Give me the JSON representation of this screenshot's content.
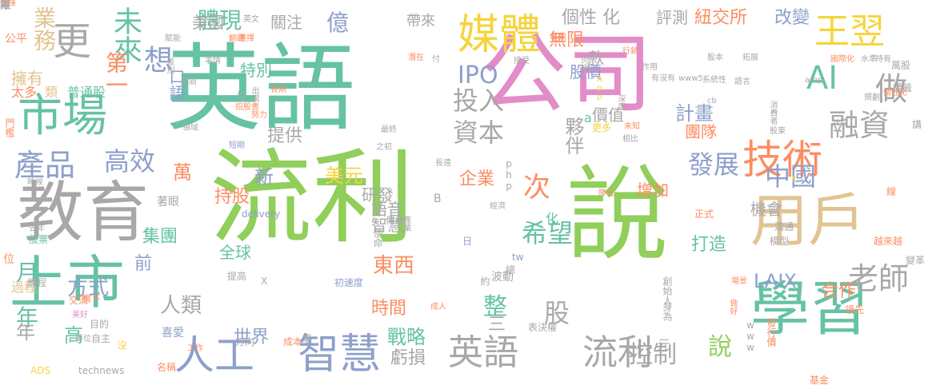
{
  "palette": {
    "green": "#8fcf5a",
    "teal": "#66c2a5",
    "pink": "#e28cc8",
    "gray": "#a8a8a8",
    "blue": "#8da0cb",
    "orange": "#fc8d62",
    "yellow": "#f5d43c",
    "tan": "#e2c492"
  },
  "words": [
    {
      "text": "流利",
      "size": 128,
      "color": "#8fcf5a"
    },
    {
      "text": "英語",
      "size": 118,
      "color": "#66c2a5"
    },
    {
      "text": "公司",
      "size": 108,
      "color": "#e28cc8"
    },
    {
      "text": "說",
      "size": 128,
      "color": "#8fcf5a"
    },
    {
      "text": "教育",
      "size": 82,
      "color": "#a8a8a8"
    },
    {
      "text": "上市",
      "size": 72,
      "color": "#66c2a5"
    },
    {
      "text": "學習",
      "size": 74,
      "color": "#66c2a5"
    },
    {
      "text": "用戶",
      "size": 72,
      "color": "#e2c492"
    },
    {
      "text": "市場",
      "size": 56,
      "color": "#66c2a5"
    },
    {
      "text": "技術",
      "size": 50,
      "color": "#fc8d62"
    },
    {
      "text": "媒體",
      "size": 52,
      "color": "#f5d43c"
    },
    {
      "text": "智慧",
      "size": 52,
      "color": "#8da0cb"
    },
    {
      "text": "人工",
      "size": 50,
      "color": "#8da0cb"
    },
    {
      "text": "英語",
      "size": 44,
      "color": "#a8a8a8"
    },
    {
      "text": "流利",
      "size": 44,
      "color": "#a8a8a8"
    },
    {
      "text": "王翌",
      "size": 44,
      "color": "#f5d43c"
    },
    {
      "text": "更",
      "size": 48,
      "color": "#a8a8a8"
    },
    {
      "text": "AI",
      "size": 40,
      "color": "#66c2a5"
    },
    {
      "text": "做",
      "size": 40,
      "color": "#a8a8a8"
    },
    {
      "text": "融資",
      "size": 38,
      "color": "#a8a8a8"
    },
    {
      "text": "產品",
      "size": 38,
      "color": "#8da0cb"
    },
    {
      "text": "未來",
      "size": 36,
      "color": "#66c2a5"
    },
    {
      "text": "想",
      "size": 36,
      "color": "#8da0cb"
    },
    {
      "text": "業務",
      "size": 28,
      "color": "#e2c492"
    },
    {
      "text": "體現",
      "size": 28,
      "color": "#66c2a5"
    },
    {
      "text": "億",
      "size": 28,
      "color": "#8da0cb"
    },
    {
      "text": "IPO",
      "size": 30,
      "color": "#8da0cb"
    },
    {
      "text": "投入",
      "size": 32,
      "color": "#a8a8a8"
    },
    {
      "text": "資本",
      "size": 32,
      "color": "#a8a8a8"
    },
    {
      "text": "高效",
      "size": 32,
      "color": "#8da0cb"
    },
    {
      "text": "第一",
      "size": 28,
      "color": "#fc8d62"
    },
    {
      "text": "發展",
      "size": 32,
      "color": "#8da0cb"
    },
    {
      "text": "中國",
      "size": 32,
      "color": "#8da0cb"
    },
    {
      "text": "次",
      "size": 34,
      "color": "#fc8d62"
    },
    {
      "text": "希望",
      "size": 32,
      "color": "#66c2a5"
    },
    {
      "text": "老師",
      "size": 38,
      "color": "#a8a8a8"
    },
    {
      "text": "控制",
      "size": 30,
      "color": "#a8a8a8"
    },
    {
      "text": "說",
      "size": 30,
      "color": "#8fcf5a"
    },
    {
      "text": "整",
      "size": 30,
      "color": "#66c2a5"
    },
    {
      "text": "股",
      "size": 32,
      "color": "#a8a8a8"
    },
    {
      "text": "年",
      "size": 28,
      "color": "#66c2a5"
    },
    {
      "text": "月",
      "size": 28,
      "color": "#66c2a5"
    },
    {
      "text": "東西",
      "size": 26,
      "color": "#fc8d62"
    },
    {
      "text": "方式",
      "size": 26,
      "color": "#8da0cb"
    },
    {
      "text": "人類",
      "size": 26,
      "color": "#a8a8a8"
    },
    {
      "text": "戰略",
      "size": 24,
      "color": "#66c2a5"
    },
    {
      "text": "虧損",
      "size": 22,
      "color": "#a8a8a8"
    },
    {
      "text": "世界",
      "size": 22,
      "color": "#8da0cb"
    },
    {
      "text": "時間",
      "size": 22,
      "color": "#fc8d62"
    },
    {
      "text": "高",
      "size": 24,
      "color": "#66c2a5"
    },
    {
      "text": "年",
      "size": 24,
      "color": "#a8a8a8"
    },
    {
      "text": "LAIX",
      "size": 24,
      "color": "#8da0cb"
    },
    {
      "text": "合作",
      "size": 22,
      "color": "#fc8d62"
    },
    {
      "text": "打造",
      "size": 22,
      "color": "#66c2a5"
    },
    {
      "text": "計畫",
      "size": 24,
      "color": "#8da0cb"
    },
    {
      "text": "夥伴",
      "size": 24,
      "color": "#a8a8a8"
    },
    {
      "text": "美元",
      "size": 24,
      "color": "#f5d43c"
    },
    {
      "text": "研發",
      "size": 20,
      "color": "#a8a8a8"
    },
    {
      "text": "企業",
      "size": 22,
      "color": "#fc8d62"
    },
    {
      "text": "增加",
      "size": 20,
      "color": "#fc8d62"
    },
    {
      "text": "持股",
      "size": 22,
      "color": "#fc8d62"
    },
    {
      "text": "萬",
      "size": 24,
      "color": "#fc8d62"
    },
    {
      "text": "新",
      "size": 24,
      "color": "#8da0cb"
    },
    {
      "text": "集團",
      "size": 22,
      "color": "#66c2a5"
    },
    {
      "text": "提供",
      "size": 22,
      "color": "#a8a8a8"
    },
    {
      "text": "特別",
      "size": 20,
      "color": "#66c2a5"
    },
    {
      "text": "口語",
      "size": 20,
      "color": "#8da0cb"
    },
    {
      "text": "美國",
      "size": 20,
      "color": "#a8a8a8"
    },
    {
      "text": "關注",
      "size": 20,
      "color": "#a8a8a8"
    },
    {
      "text": "帶來",
      "size": 18,
      "color": "#a8a8a8"
    },
    {
      "text": "個性 化",
      "size": 22,
      "color": "#a8a8a8"
    },
    {
      "text": "無限",
      "size": 22,
      "color": "#fc8d62"
    },
    {
      "text": "紐交所",
      "size": 22,
      "color": "#fc8d62"
    },
    {
      "text": "改變",
      "size": 22,
      "color": "#8da0cb"
    },
    {
      "text": "評測",
      "size": 20,
      "color": "#a8a8a8"
    },
    {
      "text": "股價",
      "size": 20,
      "color": "#8da0cb"
    },
    {
      "text": "價值",
      "size": 20,
      "color": "#a8a8a8"
    },
    {
      "text": "團隊",
      "size": 20,
      "color": "#fc8d62"
    },
    {
      "text": "款",
      "size": 20,
      "color": "#a8a8a8"
    },
    {
      "text": "機會",
      "size": 20,
      "color": "#a8a8a8"
    },
    {
      "text": "全球",
      "size": 20,
      "color": "#66c2a5"
    },
    {
      "text": "智慧",
      "size": 20,
      "color": "#a8a8a8"
    },
    {
      "text": "語音",
      "size": 20,
      "color": "#a8a8a8"
    },
    {
      "text": "前",
      "size": 22,
      "color": "#8da0cb"
    },
    {
      "text": "三",
      "size": 22,
      "color": "#a8a8a8"
    },
    {
      "text": "擁有",
      "size": 20,
      "color": "#e2c492"
    },
    {
      "text": "太多",
      "size": 16,
      "color": "#fc8d62"
    },
    {
      "text": "類",
      "size": 16,
      "color": "#e2c492"
    },
    {
      "text": "普通股",
      "size": 16,
      "color": "#66c2a5"
    },
    {
      "text": "公平",
      "size": 14,
      "color": "#fc8d62"
    },
    {
      "text": "過程",
      "size": 16,
      "color": "#e2c492"
    },
    {
      "text": "課程",
      "size": 12,
      "color": "#a8a8a8"
    },
    {
      "text": "股票",
      "size": 12,
      "color": "#66c2a5"
    },
    {
      "text": "位",
      "size": 14,
      "color": "#fc8d62"
    },
    {
      "text": "門檻",
      "size": 12,
      "color": "#fc8d62"
    },
    {
      "text": "ADS",
      "size": 12,
      "color": "#f5d43c"
    },
    {
      "text": "technews",
      "size": 12,
      "color": "#a8a8a8"
    },
    {
      "text": "名稱",
      "size": 12,
      "color": "#fc8d62"
    },
    {
      "text": "沒",
      "size": 12,
      "color": "#f5d43c"
    },
    {
      "text": "工作",
      "size": 10,
      "color": "#fc8d62"
    },
    {
      "text": "喜愛",
      "size": 14,
      "color": "#8da0cb"
    },
    {
      "text": "自主",
      "size": 12,
      "color": "#a8a8a8"
    },
    {
      "text": "目的",
      "size": 12,
      "color": "#a8a8a8"
    },
    {
      "text": "方向",
      "size": 12,
      "color": "#a8a8a8"
    },
    {
      "text": "成本",
      "size": 12,
      "color": "#fc8d62"
    },
    {
      "text": "事",
      "size": 12,
      "color": "#a8a8a8"
    },
    {
      "text": "旗下",
      "size": 12,
      "color": "#fc8d62"
    },
    {
      "text": "交流",
      "size": 12,
      "color": "#fc8d62"
    },
    {
      "text": "美好",
      "size": 10,
      "color": "#e28cc8"
    },
    {
      "text": "單位",
      "size": 10,
      "color": "#a8a8a8"
    },
    {
      "text": "提高",
      "size": 12,
      "color": "#a8a8a8"
    },
    {
      "text": "X",
      "size": 12,
      "color": "#a8a8a8"
    },
    {
      "text": "初速度",
      "size": 12,
      "color": "#8da0cb"
    },
    {
      "text": "成人",
      "size": 10,
      "color": "#fc8d62"
    },
    {
      "text": "表決權",
      "size": 12,
      "color": "#a8a8a8"
    },
    {
      "text": "波動",
      "size": 14,
      "color": "#a8a8a8"
    },
    {
      "text": "約",
      "size": 12,
      "color": "#a8a8a8"
    },
    {
      "text": "總",
      "size": 12,
      "color": "#a8a8a8"
    },
    {
      "text": "tw",
      "size": 12,
      "color": "#8da0cb"
    },
    {
      "text": "日",
      "size": 12,
      "color": "#8da0cb"
    },
    {
      "text": "使命",
      "size": 12,
      "color": "#a8a8a8"
    },
    {
      "text": "傳統",
      "size": 12,
      "color": "#a8a8a8"
    },
    {
      "text": "產業",
      "size": 10,
      "color": "#a8a8a8"
    },
    {
      "text": "經濟",
      "size": 10,
      "color": "#a8a8a8"
    },
    {
      "text": "B",
      "size": 14,
      "color": "#a8a8a8"
    },
    {
      "text": "化",
      "size": 16,
      "color": "#66c2a5"
    },
    {
      "text": "delivery",
      "size": 12,
      "color": "#8da0cb"
    },
    {
      "text": "著眼",
      "size": 14,
      "color": "#a8a8a8"
    },
    {
      "text": "元",
      "size": 16,
      "color": "#a8a8a8"
    },
    {
      "text": "創始人",
      "size": 12,
      "color": "#a8a8a8"
    },
    {
      "text": "身為",
      "size": 12,
      "color": "#a8a8a8"
    },
    {
      "text": "場景",
      "size": 10,
      "color": "#fc8d62"
    },
    {
      "text": "做好",
      "size": 10,
      "color": "#fc8d62"
    },
    {
      "text": "基金",
      "size": 12,
      "color": "#fc8d62"
    },
    {
      "text": "www",
      "size": 12,
      "color": "#a8a8a8"
    },
    {
      "text": "發行價",
      "size": 12,
      "color": "#fc8d62"
    },
    {
      "text": "領先",
      "size": 12,
      "color": "#fc8d62"
    },
    {
      "text": "變革",
      "size": 12,
      "color": "#a8a8a8"
    },
    {
      "text": "越來越",
      "size": 12,
      "color": "#fc8d62"
    },
    {
      "text": "模型",
      "size": 12,
      "color": "#a8a8a8"
    },
    {
      "text": "溝通",
      "size": 12,
      "color": "#a8a8a8"
    },
    {
      "text": "線",
      "size": 12,
      "color": "#fc8d62"
    },
    {
      "text": "K",
      "size": 10,
      "color": "#f5d43c"
    },
    {
      "text": "正式",
      "size": 12,
      "color": "#fc8d62"
    },
    {
      "text": "降低",
      "size": 10,
      "color": "#fc8d62"
    },
    {
      "text": "php",
      "size": 12,
      "color": "#a8a8a8"
    },
    {
      "text": "長遠",
      "size": 10,
      "color": "#a8a8a8"
    },
    {
      "text": "最終",
      "size": 10,
      "color": "#a8a8a8"
    },
    {
      "text": "之初",
      "size": 10,
      "color": "#a8a8a8"
    },
    {
      "text": "更多",
      "size": 12,
      "color": "#f5d43c"
    },
    {
      "text": "a",
      "size": 16,
      "color": "#66c2a5"
    },
    {
      "text": "未知",
      "size": 10,
      "color": "#fc8d62"
    },
    {
      "text": "相比",
      "size": 10,
      "color": "#a8a8a8"
    },
    {
      "text": "短期",
      "size": 10,
      "color": "#8da0cb"
    },
    {
      "text": "領域",
      "size": 10,
      "color": "#a8a8a8"
    },
    {
      "text": "時候",
      "size": 10,
      "color": "#a8a8a8"
    },
    {
      "text": "去年",
      "size": 10,
      "color": "#a8a8a8"
    },
    {
      "text": "招股書",
      "size": 10,
      "color": "#fc8d62"
    },
    {
      "text": "出國",
      "size": 10,
      "color": "#a8a8a8"
    },
    {
      "text": "長期",
      "size": 10,
      "color": "#fc8d62"
    },
    {
      "text": "努力",
      "size": 10,
      "color": "#fc8d62"
    },
    {
      "text": "均",
      "size": 12,
      "color": "#a8a8a8"
    },
    {
      "text": "矛盾",
      "size": 10,
      "color": "#a8a8a8"
    },
    {
      "text": "差別",
      "size": 10,
      "color": "#a8a8a8"
    },
    {
      "text": "賦能",
      "size": 10,
      "color": "#a8a8a8"
    },
    {
      "text": "翻譯",
      "size": 10,
      "color": "#fc8d62"
    },
    {
      "text": "事情",
      "size": 10,
      "color": "#a8a8a8"
    },
    {
      "text": "英文",
      "size": 10,
      "color": "#a8a8a8"
    },
    {
      "text": "選擇",
      "size": 10,
      "color": "#fc8d62"
    },
    {
      "text": "潛在",
      "size": 10,
      "color": "#fc8d62"
    },
    {
      "text": "付",
      "size": 10,
      "color": "#a8a8a8"
    },
    {
      "text": "接受",
      "size": 10,
      "color": "#a8a8a8"
    },
    {
      "text": "閃耀",
      "size": 10,
      "color": "#a8a8a8"
    },
    {
      "text": "作用",
      "size": 10,
      "color": "#a8a8a8"
    },
    {
      "text": "App",
      "size": 10,
      "color": "#f5d43c"
    },
    {
      "text": "深度",
      "size": 10,
      "color": "#a8a8a8"
    },
    {
      "text": "毛利",
      "size": 10,
      "color": "#fc8d62"
    },
    {
      "text": "股本",
      "size": 10,
      "color": "#a8a8a8"
    },
    {
      "text": "拓展",
      "size": 10,
      "color": "#a8a8a8"
    },
    {
      "text": "有沒有",
      "size": 10,
      "color": "#a8a8a8"
    },
    {
      "text": "www5",
      "size": 10,
      "color": "#a8a8a8"
    },
    {
      "text": "系統性",
      "size": 10,
      "color": "#a8a8a8"
    },
    {
      "text": "語言",
      "size": 10,
      "color": "#a8a8a8"
    },
    {
      "text": "cb",
      "size": 10,
      "color": "#a8a8a8"
    },
    {
      "text": "amp",
      "size": 10,
      "color": "#a8a8a8"
    },
    {
      "text": "國際化",
      "size": 10,
      "color": "#fc8d62"
    },
    {
      "text": "水準",
      "size": 10,
      "color": "#a8a8a8"
    },
    {
      "text": "持有",
      "size": 10,
      "color": "#a8a8a8"
    },
    {
      "text": "萬股",
      "size": 12,
      "color": "#a8a8a8"
    },
    {
      "text": "標籤",
      "size": 12,
      "color": "#a8a8a8"
    },
    {
      "text": "個性化",
      "size": 10,
      "color": "#fc8d62"
    },
    {
      "text": "規劃",
      "size": 10,
      "color": "#a8a8a8"
    },
    {
      "text": "消費者",
      "size": 10,
      "color": "#a8a8a8"
    },
    {
      "text": "計算",
      "size": 10,
      "color": "#a8a8a8"
    },
    {
      "text": "股東",
      "size": 10,
      "color": "#a8a8a8"
    },
    {
      "text": "講",
      "size": 12,
      "color": "#a8a8a8"
    },
    {
      "text": "行銷",
      "size": 10,
      "color": "#fc8d62"
    },
    {
      "text": "報",
      "size": 12,
      "color": "#a8a8a8"
    },
    {
      "text": "兩",
      "size": 12,
      "color": "#a8a8a8"
    },
    {
      "text": "發揮",
      "size": 10,
      "color": "#fc8d62"
    },
    {
      "text": "限",
      "size": 14,
      "color": "#a8a8a8"
    }
  ]
}
